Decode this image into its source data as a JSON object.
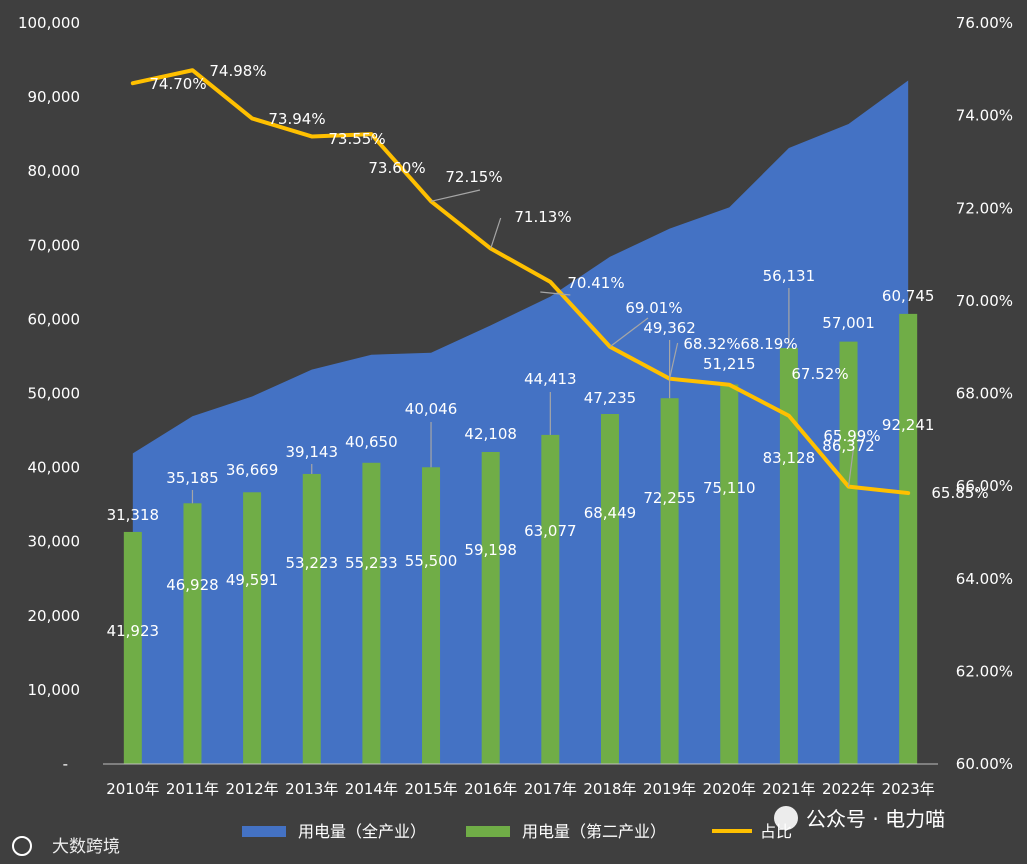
{
  "chart_data": {
    "type": "bar+area+line",
    "categories": [
      "2010年",
      "2011年",
      "2012年",
      "2013年",
      "2014年",
      "2015年",
      "2016年",
      "2017年",
      "2018年",
      "2019年",
      "2020年",
      "2021年",
      "2022年",
      "2023年"
    ],
    "series": [
      {
        "name": "用电量（全产业）",
        "type": "area",
        "axis": "left",
        "color": "#4472c4",
        "values": [
          41923,
          46928,
          49591,
          53223,
          55233,
          55500,
          59198,
          63077,
          68449,
          72255,
          75110,
          83128,
          86372,
          92241
        ],
        "labels": [
          "41,923",
          "46,928",
          "49,591",
          "53,223",
          "55,233",
          "55,500",
          "59,198",
          "63,077",
          "68,449",
          "72,255",
          "75,110",
          "83,128",
          "86,372",
          "92,241"
        ]
      },
      {
        "name": "用电量（第二产业）",
        "type": "bar",
        "axis": "left",
        "color": "#70ad47",
        "values": [
          31318,
          35185,
          36669,
          39143,
          40650,
          40046,
          42108,
          44413,
          47235,
          49362,
          51215,
          56131,
          57001,
          60745
        ],
        "labels": [
          "31,318",
          "35,185",
          "36,669",
          "39,143",
          "40,650",
          "40,046",
          "42,108",
          "44,413",
          "47,235",
          "49,362",
          "51,215",
          "56,131",
          "57,001",
          "60,745"
        ]
      },
      {
        "name": "占比",
        "type": "line",
        "axis": "right",
        "color": "#ffc000",
        "values": [
          74.7,
          74.98,
          73.94,
          73.55,
          73.6,
          72.15,
          71.13,
          70.41,
          69.01,
          68.32,
          68.19,
          67.52,
          65.99,
          65.85
        ],
        "labels": [
          "74.70%",
          "74.98%",
          "73.94%",
          "73.55%",
          "73.60%",
          "72.15%",
          "71.13%",
          "70.41%",
          "69.01%",
          "68.32%",
          "68.19%",
          "67.52%",
          "65.99%",
          "65.85%"
        ]
      }
    ],
    "y_left": {
      "range": [
        0,
        100000
      ],
      "ticks": [
        0,
        10000,
        20000,
        30000,
        40000,
        50000,
        60000,
        70000,
        80000,
        90000,
        100000
      ],
      "tick_labels": [
        "-",
        "10,000",
        "20,000",
        "30,000",
        "40,000",
        "50,000",
        "60,000",
        "70,000",
        "80,000",
        "90,000",
        "100,000"
      ]
    },
    "y_right": {
      "range": [
        60,
        76
      ],
      "ticks": [
        60,
        62,
        64,
        66,
        68,
        70,
        72,
        74,
        76
      ],
      "tick_labels": [
        "60.00%",
        "62.00%",
        "64.00%",
        "66.00%",
        "68.00%",
        "70.00%",
        "72.00%",
        "74.00%",
        "76.00%"
      ]
    },
    "grid": false,
    "legend_position": "bottom",
    "title": "",
    "xlabel": "",
    "ylabel": ""
  },
  "watermarks": {
    "bottom_left": "大数跨境",
    "bottom_right": "公众号 · 电力喵"
  },
  "colors": {
    "background": "#3f3f3f",
    "text": "#ffffff",
    "leader_line": "#a6a6a6"
  }
}
